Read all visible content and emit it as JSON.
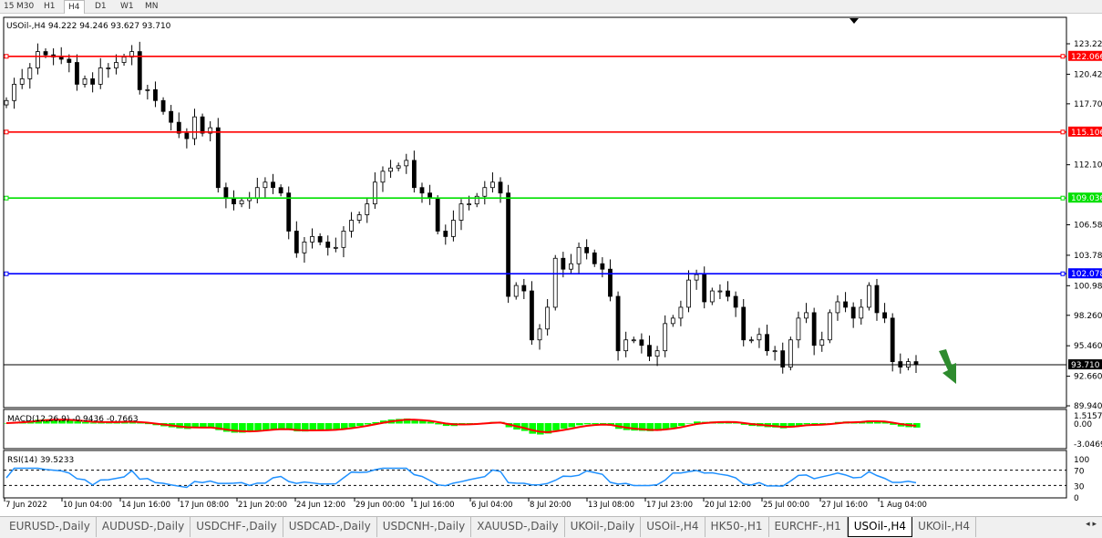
{
  "timeframes": [
    {
      "label": "15",
      "active": false
    },
    {
      "label": "M30",
      "active": false
    },
    {
      "label": "H1",
      "active": false
    },
    {
      "label": "H4",
      "active": true
    },
    {
      "label": "D1",
      "active": false
    },
    {
      "label": "W1",
      "active": false
    },
    {
      "label": "MN",
      "active": false
    }
  ],
  "chart": {
    "title": "USOil-,H4  94.222 94.246 93.627 93.710",
    "symbol": "USOil-",
    "timeframe": "H4",
    "ohlc": {
      "open": 94.222,
      "high": 94.246,
      "low": 93.627,
      "close": 93.71
    },
    "price_ticks": [
      "123.220",
      "120.420",
      "117.700",
      "112.100",
      "106.580",
      "103.780",
      "100.980",
      "98.260",
      "95.460",
      "92.660",
      "89.940"
    ],
    "hlines": [
      {
        "price": "122.066",
        "color": "#ff0000"
      },
      {
        "price": "115.106",
        "color": "#ff0000"
      },
      {
        "price": "109.036",
        "color": "#00e000"
      },
      {
        "price": "102.078",
        "color": "#0000ff"
      },
      {
        "price": "93.710",
        "color": "#000000",
        "current": true
      }
    ],
    "date_ticks": [
      "7 Jun 2022",
      "10 Jun 04:00",
      "14 Jun 16:00",
      "17 Jun 08:00",
      "21 Jun 20:00",
      "24 Jun 12:00",
      "29 Jun 00:00",
      "1 Jul 16:00",
      "6 Jul 04:00",
      "8 Jul 20:00",
      "13 Jul 08:00",
      "17 Jul 23:00",
      "20 Jul 12:00",
      "25 Jul 00:00",
      "27 Jul 16:00",
      "1 Aug 04:00"
    ],
    "bull_color": "#000000",
    "bear_color": "#000000",
    "arrow_color": "#2e8b2e",
    "closes": [
      118,
      119.5,
      120,
      121,
      122.5,
      122.2,
      122,
      121.8,
      121.5,
      119.5,
      120,
      119.5,
      121,
      121,
      121.5,
      122,
      122.5,
      119,
      119,
      118,
      117,
      116,
      115,
      114.5,
      116.5,
      115,
      115.5,
      110,
      109,
      108.5,
      108.8,
      109,
      110,
      110.5,
      110,
      109.5,
      106,
      104,
      105,
      105.5,
      105,
      104.5,
      104.5,
      106,
      107,
      107.5,
      108.5,
      110.5,
      111.5,
      111.8,
      112,
      112.5,
      110,
      109.5,
      109,
      106,
      105.5,
      107,
      108.5,
      108.5,
      109.2,
      110,
      110.5,
      109.5,
      100,
      101,
      100.5,
      96,
      97,
      99,
      103.5,
      102.5,
      103,
      104.5,
      104,
      103,
      102.5,
      100,
      95,
      96,
      96,
      95.5,
      94.5,
      95,
      97.5,
      98,
      99,
      101.5,
      102,
      99.5,
      100.5,
      100.5,
      100,
      99,
      96,
      96,
      96.5,
      95,
      95,
      93.5,
      96,
      98,
      98.5,
      95.5,
      96,
      98.5,
      99.5,
      99,
      98,
      99,
      101,
      98.5,
      98,
      94,
      93.5,
      94,
      93.71
    ]
  },
  "macd": {
    "label": "MACD(12,26,9) -0.9436 -0.7663",
    "ticks": [
      "1.5157",
      "0.00",
      "-3.0469"
    ],
    "hist_color": "#00ff00",
    "signal_color": "#ff0000"
  },
  "rsi": {
    "label": "RSI(14) 39.5233",
    "ticks": [
      "100",
      "70",
      "30",
      "0"
    ],
    "line_color": "#1e90ff"
  },
  "tabs": [
    {
      "label": "EURUSD-,Daily"
    },
    {
      "label": "AUDUSD-,Daily"
    },
    {
      "label": "USDCHF-,Daily"
    },
    {
      "label": "USDCAD-,Daily"
    },
    {
      "label": "USDCNH-,Daily"
    },
    {
      "label": "XAUUSD-,Daily"
    },
    {
      "label": "UKOil-,Daily"
    },
    {
      "label": "USOil-,H4"
    },
    {
      "label": "HK50-,H1"
    },
    {
      "label": "EURCHF-,H1"
    },
    {
      "label": "USOil-,H4",
      "active": true
    },
    {
      "label": "UKOil-,H4"
    }
  ],
  "tab_scroll": "◂ ▸"
}
